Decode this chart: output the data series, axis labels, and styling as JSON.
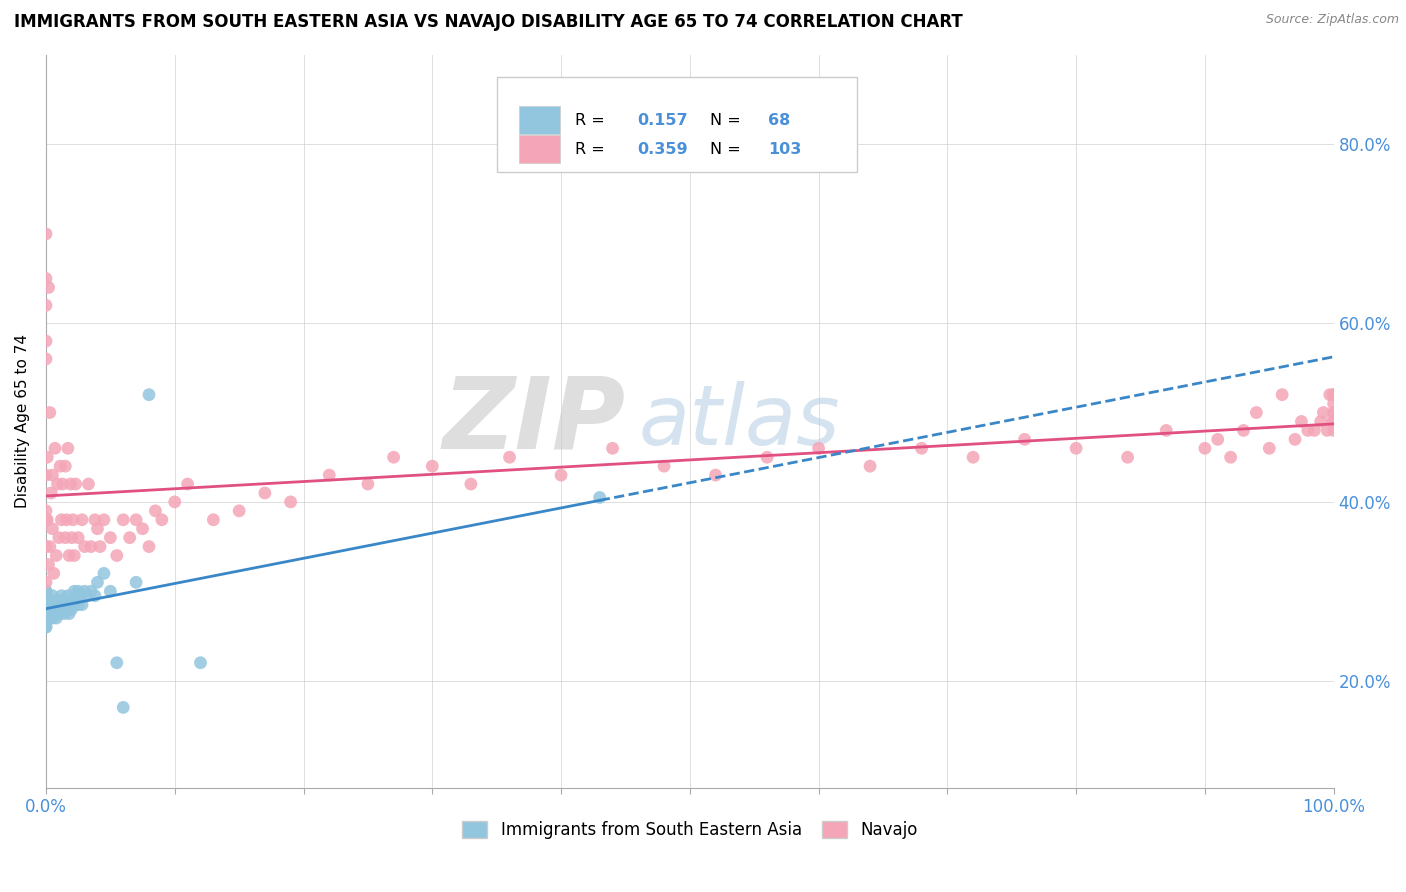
{
  "title": "IMMIGRANTS FROM SOUTH EASTERN ASIA VS NAVAJO DISABILITY AGE 65 TO 74 CORRELATION CHART",
  "source_text": "Source: ZipAtlas.com",
  "ylabel": "Disability Age 65 to 74",
  "xlim": [
    0.0,
    1.0
  ],
  "ylim": [
    0.08,
    0.9
  ],
  "xtick_positions": [
    0.0,
    0.1,
    0.2,
    0.3,
    0.4,
    0.5,
    0.6,
    0.7,
    0.8,
    0.9,
    1.0
  ],
  "xtick_labels": [
    "0.0%",
    "",
    "",
    "",
    "",
    "",
    "",
    "",
    "",
    "",
    "100.0%"
  ],
  "ytick_positions": [
    0.2,
    0.4,
    0.6,
    0.8
  ],
  "ytick_labels": [
    "20.0%",
    "40.0%",
    "60.0%",
    "80.0%"
  ],
  "blue_color": "#92c5de",
  "pink_color": "#f4a6b8",
  "blue_line_color": "#3a87c8",
  "pink_line_color": "#e05080",
  "watermark_zip": "ZIP",
  "watermark_atlas": "atlas",
  "blue_r": "0.157",
  "blue_n": "68",
  "pink_r": "0.359",
  "pink_n": "103",
  "label_color": "#4a90d9",
  "blue_scatter_x": [
    0.0,
    0.0,
    0.0,
    0.0,
    0.0,
    0.0,
    0.0,
    0.0,
    0.0,
    0.0,
    0.0,
    0.0,
    0.0,
    0.0,
    0.0,
    0.0,
    0.0,
    0.0,
    0.0,
    0.0,
    0.001,
    0.001,
    0.002,
    0.002,
    0.003,
    0.003,
    0.004,
    0.004,
    0.005,
    0.005,
    0.006,
    0.006,
    0.007,
    0.008,
    0.009,
    0.01,
    0.01,
    0.011,
    0.012,
    0.013,
    0.014,
    0.015,
    0.015,
    0.016,
    0.017,
    0.018,
    0.019,
    0.02,
    0.021,
    0.022,
    0.023,
    0.025,
    0.025,
    0.027,
    0.028,
    0.03,
    0.032,
    0.035,
    0.038,
    0.04,
    0.045,
    0.05,
    0.055,
    0.06,
    0.07,
    0.08,
    0.12,
    0.43
  ],
  "blue_scatter_y": [
    0.29,
    0.28,
    0.275,
    0.285,
    0.27,
    0.295,
    0.265,
    0.3,
    0.26,
    0.285,
    0.275,
    0.29,
    0.28,
    0.27,
    0.265,
    0.295,
    0.285,
    0.3,
    0.275,
    0.26,
    0.28,
    0.275,
    0.285,
    0.27,
    0.29,
    0.28,
    0.275,
    0.285,
    0.27,
    0.295,
    0.28,
    0.275,
    0.285,
    0.27,
    0.28,
    0.29,
    0.275,
    0.285,
    0.295,
    0.28,
    0.275,
    0.29,
    0.28,
    0.285,
    0.295,
    0.275,
    0.29,
    0.28,
    0.285,
    0.3,
    0.295,
    0.285,
    0.3,
    0.295,
    0.285,
    0.3,
    0.295,
    0.3,
    0.295,
    0.31,
    0.32,
    0.3,
    0.22,
    0.17,
    0.31,
    0.52,
    0.22,
    0.405
  ],
  "pink_scatter_x": [
    0.0,
    0.0,
    0.0,
    0.0,
    0.0,
    0.0,
    0.0,
    0.0,
    0.0,
    0.0,
    0.001,
    0.001,
    0.002,
    0.002,
    0.003,
    0.003,
    0.004,
    0.005,
    0.005,
    0.006,
    0.007,
    0.008,
    0.009,
    0.01,
    0.011,
    0.012,
    0.013,
    0.015,
    0.015,
    0.016,
    0.017,
    0.018,
    0.019,
    0.02,
    0.021,
    0.022,
    0.023,
    0.025,
    0.028,
    0.03,
    0.033,
    0.035,
    0.038,
    0.04,
    0.042,
    0.045,
    0.05,
    0.055,
    0.06,
    0.065,
    0.07,
    0.075,
    0.08,
    0.085,
    0.09,
    0.1,
    0.11,
    0.13,
    0.15,
    0.17,
    0.19,
    0.22,
    0.25,
    0.27,
    0.3,
    0.33,
    0.36,
    0.4,
    0.44,
    0.48,
    0.52,
    0.56,
    0.6,
    0.64,
    0.68,
    0.72,
    0.76,
    0.8,
    0.84,
    0.87,
    0.9,
    0.91,
    0.92,
    0.93,
    0.94,
    0.95,
    0.96,
    0.97,
    0.975,
    0.98,
    0.985,
    0.99,
    0.992,
    0.995,
    0.997,
    0.999,
    1.0,
    1.0,
    1.0,
    1.0,
    1.0,
    1.0,
    1.0
  ],
  "pink_scatter_y": [
    0.62,
    0.65,
    0.35,
    0.58,
    0.38,
    0.7,
    0.43,
    0.39,
    0.56,
    0.31,
    0.45,
    0.38,
    0.64,
    0.33,
    0.5,
    0.35,
    0.41,
    0.37,
    0.43,
    0.32,
    0.46,
    0.34,
    0.42,
    0.36,
    0.44,
    0.38,
    0.42,
    0.36,
    0.44,
    0.38,
    0.46,
    0.34,
    0.42,
    0.36,
    0.38,
    0.34,
    0.42,
    0.36,
    0.38,
    0.35,
    0.42,
    0.35,
    0.38,
    0.37,
    0.35,
    0.38,
    0.36,
    0.34,
    0.38,
    0.36,
    0.38,
    0.37,
    0.35,
    0.39,
    0.38,
    0.4,
    0.42,
    0.38,
    0.39,
    0.41,
    0.4,
    0.43,
    0.42,
    0.45,
    0.44,
    0.42,
    0.45,
    0.43,
    0.46,
    0.44,
    0.43,
    0.45,
    0.46,
    0.44,
    0.46,
    0.45,
    0.47,
    0.46,
    0.45,
    0.48,
    0.46,
    0.47,
    0.45,
    0.48,
    0.5,
    0.46,
    0.52,
    0.47,
    0.49,
    0.48,
    0.48,
    0.49,
    0.5,
    0.48,
    0.52,
    0.49,
    0.48,
    0.52,
    0.5,
    0.49,
    0.51,
    0.5,
    0.52
  ]
}
